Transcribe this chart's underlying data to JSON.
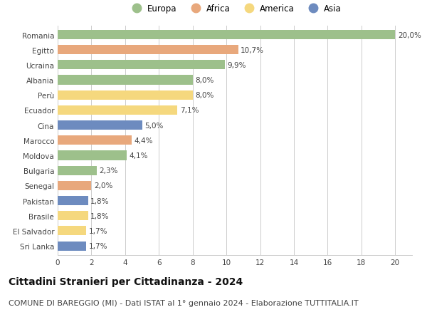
{
  "countries": [
    "Romania",
    "Egitto",
    "Ucraina",
    "Albania",
    "Perù",
    "Ecuador",
    "Cina",
    "Marocco",
    "Moldova",
    "Bulgaria",
    "Senegal",
    "Pakistan",
    "Brasile",
    "El Salvador",
    "Sri Lanka"
  ],
  "values": [
    20.0,
    10.7,
    9.9,
    8.0,
    8.0,
    7.1,
    5.0,
    4.4,
    4.1,
    2.3,
    2.0,
    1.8,
    1.8,
    1.7,
    1.7
  ],
  "labels": [
    "20,0%",
    "10,7%",
    "9,9%",
    "8,0%",
    "8,0%",
    "7,1%",
    "5,0%",
    "4,4%",
    "4,1%",
    "2,3%",
    "2,0%",
    "1,8%",
    "1,8%",
    "1,7%",
    "1,7%"
  ],
  "continents": [
    "Europa",
    "Africa",
    "Europa",
    "Europa",
    "America",
    "America",
    "Asia",
    "Africa",
    "Europa",
    "Europa",
    "Africa",
    "Asia",
    "America",
    "America",
    "Asia"
  ],
  "colors": {
    "Europa": "#9dc08b",
    "Africa": "#e8a87c",
    "America": "#f5d87e",
    "Asia": "#6d8bbf"
  },
  "legend_order": [
    "Europa",
    "Africa",
    "America",
    "Asia"
  ],
  "xlim": [
    0,
    21
  ],
  "xticks": [
    0,
    2,
    4,
    6,
    8,
    10,
    12,
    14,
    16,
    18,
    20
  ],
  "title": "Cittadini Stranieri per Cittadinanza - 2024",
  "subtitle": "COMUNE DI BAREGGIO (MI) - Dati ISTAT al 1° gennaio 2024 - Elaborazione TUTTITALIA.IT",
  "bg_color": "#ffffff",
  "grid_color": "#cccccc",
  "bar_height": 0.62,
  "title_fontsize": 10,
  "subtitle_fontsize": 8,
  "label_fontsize": 7.5,
  "tick_fontsize": 7.5,
  "legend_fontsize": 8.5
}
